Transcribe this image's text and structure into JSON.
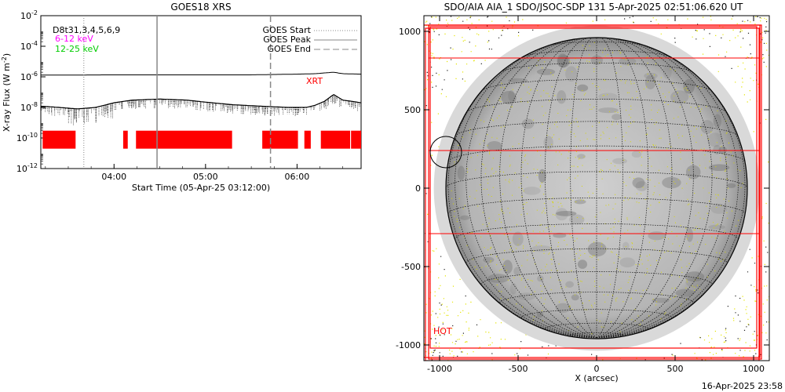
{
  "chart_data": [
    {
      "type": "line",
      "title": "GOES18 XRS",
      "xlabel": "Start Time (05-Apr-25 03:12:00)",
      "ylabel": "X-ray Flux (W m",
      "ylabel_sup": "-2",
      "ylabel_close": ")",
      "ylog": true,
      "ylim_exp": [
        -12,
        -2
      ],
      "y_ticks_exp": [
        -12,
        -10,
        -8,
        -6,
        -4,
        -2
      ],
      "xlim_hours": [
        3.2,
        6.7
      ],
      "x_ticks": [
        {
          "h": 4.0,
          "label": "04:00"
        },
        {
          "h": 5.0,
          "label": "05:00"
        },
        {
          "h": 6.0,
          "label": "06:00"
        }
      ],
      "legend": {
        "left": [
          {
            "text": "D8t31,3,4,5,6,9",
            "color": "#000000"
          },
          {
            "text": "6-12 keV",
            "color": "#ff00ff"
          },
          {
            "text": "12-25 keV",
            "color": "#00cc00"
          }
        ],
        "right": [
          {
            "text": "GOES Start",
            "style": "dotted"
          },
          {
            "text": "GOES Peak",
            "style": "solid"
          },
          {
            "text": "GOES End",
            "style": "dashed"
          }
        ]
      },
      "xrt_label": "XRT",
      "markers": {
        "start": 3.67,
        "peak": 4.47,
        "end": 5.71
      },
      "series": [
        {
          "key": "long",
          "x": [
            3.2,
            3.5,
            4.0,
            4.5,
            5.0,
            5.5,
            6.0,
            6.2,
            6.3,
            6.4,
            6.5,
            6.7
          ],
          "y": [
            1.3e-06,
            1.3e-06,
            1.35e-06,
            1.35e-06,
            1.35e-06,
            1.35e-06,
            1.5e-06,
            1.6e-06,
            1.8e-06,
            2e-06,
            1.6e-06,
            1.5e-06
          ]
        },
        {
          "key": "short",
          "x": [
            3.2,
            3.4,
            3.6,
            3.8,
            4.0,
            4.2,
            4.5,
            4.8,
            5.0,
            5.3,
            5.6,
            5.9,
            6.1,
            6.2,
            6.3,
            6.4,
            6.5,
            6.6,
            6.7
          ],
          "y": [
            1.2e-08,
            1e-08,
            8e-09,
            1e-08,
            2e-08,
            3e-08,
            3.5e-08,
            3e-08,
            2.2e-08,
            1.5e-08,
            1.2e-08,
            1e-08,
            1e-08,
            1.4e-08,
            2.5e-08,
            7e-08,
            3e-08,
            2.5e-08,
            2e-08
          ]
        }
      ],
      "xrt_coverage_hours": [
        [
          3.22,
          3.58
        ],
        [
          4.1,
          4.15
        ],
        [
          4.24,
          5.29
        ],
        [
          5.62,
          6.01
        ],
        [
          6.08,
          6.15
        ],
        [
          6.26,
          6.58
        ],
        [
          6.59,
          6.7
        ]
      ]
    },
    {
      "type": "image",
      "title": "SDO/AIA AIA_1 SDO/JSOC-SDP 131  5-Apr-2025 02:51:06.620 UT",
      "xlabel": "X (arcsec)",
      "xlim": [
        -1100,
        1100
      ],
      "ylim": [
        -1100,
        1100
      ],
      "x_ticks": [
        -1000,
        -500,
        0,
        500,
        1000
      ],
      "y_ticks": [
        -1000,
        -500,
        0,
        500,
        1000
      ],
      "solar_radius_arcsec": 960,
      "hot_region_label": "HOT",
      "fov_boxes": [
        {
          "x": [
            -1060,
            1020
          ],
          "y": [
            -1020,
            1030
          ]
        },
        {
          "x": [
            -1070,
            1050
          ],
          "y": [
            -1090,
            1040
          ]
        },
        {
          "x": [
            -1090,
            1035
          ],
          "y": [
            -1100,
            1020
          ]
        },
        {
          "x": [
            -1100,
            1040
          ],
          "y": [
            -1080,
            1040
          ]
        }
      ],
      "fov_hlines": [
        830,
        240,
        -290
      ],
      "circle_marker": {
        "x": -960,
        "y": 230,
        "r": 100
      }
    }
  ],
  "footer_timestamp": "16-Apr-2025 23:58"
}
